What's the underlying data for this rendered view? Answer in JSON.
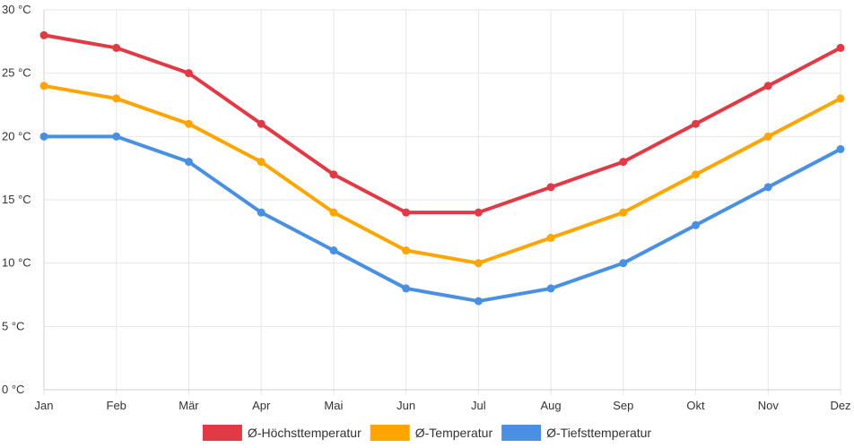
{
  "chart_data": {
    "type": "line",
    "title": "",
    "xlabel": "",
    "ylabel": "",
    "categories": [
      "Jan",
      "Feb",
      "Mär",
      "Apr",
      "Mai",
      "Jun",
      "Jul",
      "Aug",
      "Sep",
      "Okt",
      "Nov",
      "Dez"
    ],
    "ylim": [
      0,
      30
    ],
    "yticks": [
      0,
      5,
      10,
      15,
      20,
      25,
      30
    ],
    "ytick_suffix": " °C",
    "ytick_labels": [
      "0 °C",
      "5 °C",
      "10 °C",
      "15 °C",
      "20 °C",
      "25 °C",
      "30 °C"
    ],
    "grid": true,
    "legend_position": "bottom-center",
    "series": [
      {
        "key": "hoechst",
        "name": "Ø-Höchsttemperatur",
        "color": "#e03a45",
        "values": [
          28,
          27,
          25,
          21,
          17,
          14,
          14,
          16,
          18,
          21,
          24,
          27
        ]
      },
      {
        "key": "mittel",
        "name": "Ø-Temperatur",
        "color": "#ffa500",
        "values": [
          24,
          23,
          21,
          18,
          14,
          11,
          10,
          12,
          14,
          17,
          20,
          23
        ]
      },
      {
        "key": "tiefst",
        "name": "Ø-Tiefsttemperatur",
        "color": "#4a90e2",
        "values": [
          20,
          20,
          18,
          14,
          11,
          8,
          7,
          8,
          10,
          13,
          16,
          19
        ]
      }
    ]
  }
}
